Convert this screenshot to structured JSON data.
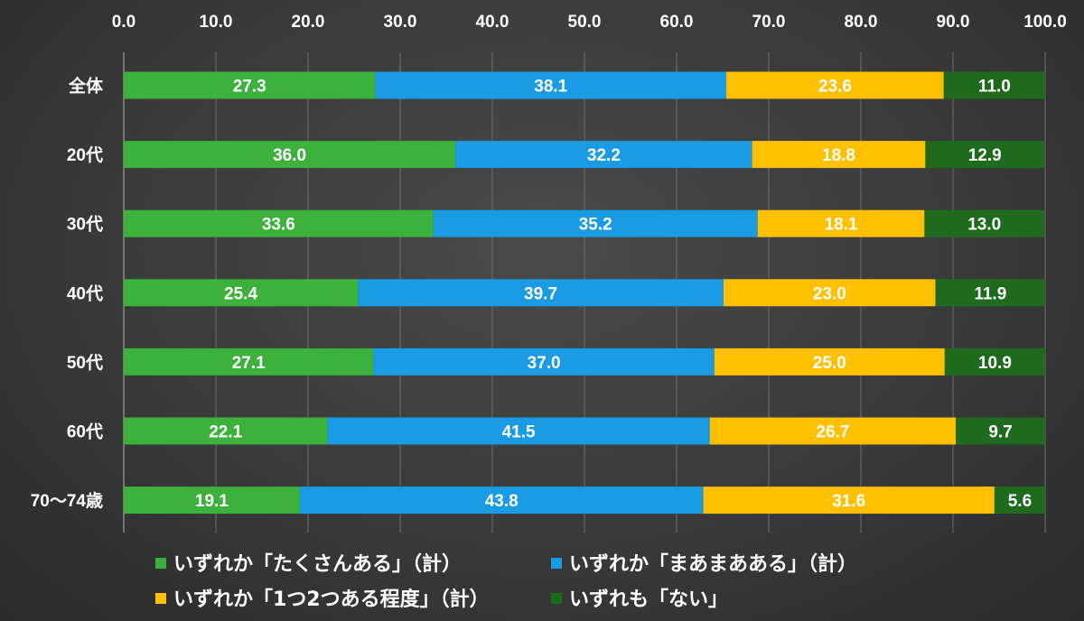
{
  "chart_data": {
    "type": "stacked-bar-horizontal",
    "title": "",
    "xlim": [
      0,
      100
    ],
    "ticks": [
      "0.0",
      "10.0",
      "20.0",
      "30.0",
      "40.0",
      "50.0",
      "60.0",
      "70.0",
      "80.0",
      "90.0",
      "100.0"
    ],
    "categories": [
      "全体",
      "20代",
      "30代",
      "40代",
      "50代",
      "60代",
      "70〜74歳"
    ],
    "series": [
      {
        "name": "いずれか「たくさんある」（計）",
        "color": "#3cb23c",
        "values": [
          27.3,
          36.0,
          33.6,
          25.4,
          27.1,
          22.1,
          19.1
        ]
      },
      {
        "name": "いずれか「まあまあある」（計）",
        "color": "#1b9be3",
        "values": [
          38.1,
          32.2,
          35.2,
          39.7,
          37.0,
          41.5,
          43.8
        ]
      },
      {
        "name": "いずれか「1つ2つある程度」（計）",
        "color": "#ffc000",
        "values": [
          23.6,
          18.8,
          18.1,
          23.0,
          25.0,
          26.7,
          31.6
        ]
      },
      {
        "name": "いずれも「ない」",
        "color": "#1e6b1e",
        "values": [
          11.0,
          12.9,
          13.0,
          11.9,
          10.9,
          9.7,
          5.6
        ]
      }
    ],
    "value_labels": [
      [
        "27.3",
        "38.1",
        "23.6",
        "11.0"
      ],
      [
        "36.0",
        "32.2",
        "18.8",
        "12.9"
      ],
      [
        "33.6",
        "35.2",
        "18.1",
        "13.0"
      ],
      [
        "25.4",
        "39.7",
        "23.0",
        "11.9"
      ],
      [
        "27.1",
        "37.0",
        "25.0",
        "10.9"
      ],
      [
        "22.1",
        "41.5",
        "26.7",
        "9.7"
      ],
      [
        "19.1",
        "43.8",
        "31.6",
        "5.6"
      ]
    ],
    "legend_position": "bottom",
    "grid": true
  }
}
